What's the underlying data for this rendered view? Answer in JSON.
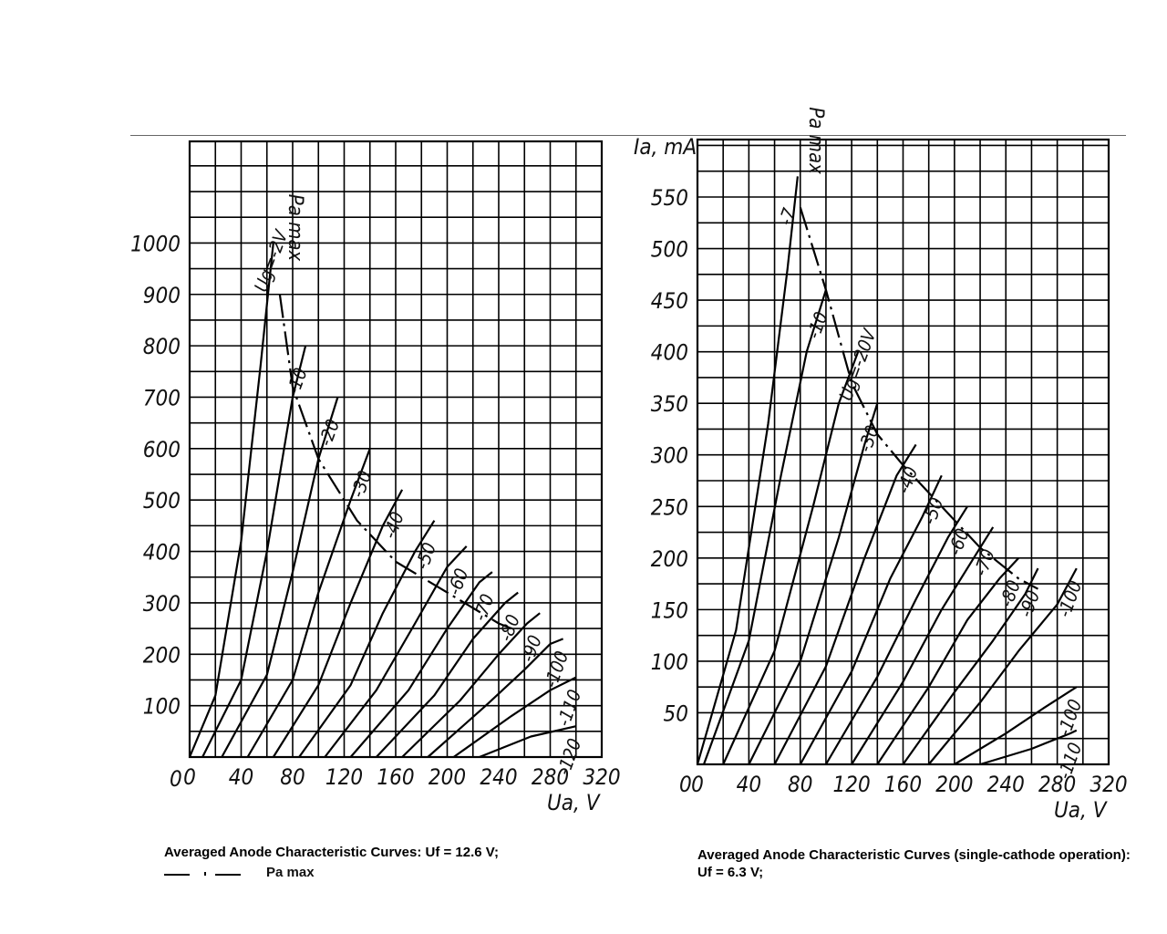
{
  "chart_data": [
    {
      "type": "line",
      "title": "",
      "ylabel": "",
      "xlabel": "Ua, V",
      "pmax_label": "Pa max",
      "x_ticks": [
        "0",
        "40",
        "80",
        "120",
        "160",
        "200",
        "240",
        "280",
        "320"
      ],
      "y_ticks": [
        "100",
        "200",
        "300",
        "400",
        "500",
        "600",
        "700",
        "800",
        "900",
        "1000"
      ],
      "xlim": [
        0,
        320
      ],
      "ylim": [
        0,
        1100
      ],
      "grid": true,
      "series": [
        {
          "name": "Ug=-2V",
          "x": [
            0,
            20,
            40,
            55,
            65
          ],
          "y": [
            0,
            120,
            420,
            760,
            1000
          ]
        },
        {
          "name": "-10",
          "x": [
            10,
            40,
            60,
            80,
            90
          ],
          "y": [
            0,
            150,
            400,
            700,
            800
          ]
        },
        {
          "name": "-20",
          "x": [
            25,
            60,
            80,
            100,
            115
          ],
          "y": [
            0,
            160,
            360,
            580,
            700
          ]
        },
        {
          "name": "-30",
          "x": [
            45,
            80,
            100,
            125,
            140
          ],
          "y": [
            0,
            150,
            320,
            500,
            600
          ]
        },
        {
          "name": "-40",
          "x": [
            65,
            100,
            125,
            150,
            165
          ],
          "y": [
            0,
            140,
            300,
            450,
            520
          ]
        },
        {
          "name": "-50",
          "x": [
            85,
            125,
            150,
            175,
            190
          ],
          "y": [
            0,
            140,
            280,
            400,
            460
          ]
        },
        {
          "name": "-60",
          "x": [
            105,
            145,
            175,
            200,
            215
          ],
          "y": [
            0,
            130,
            260,
            370,
            410
          ]
        },
        {
          "name": "-70",
          "x": [
            125,
            170,
            200,
            225,
            235
          ],
          "y": [
            0,
            130,
            250,
            340,
            360
          ]
        },
        {
          "name": "-80",
          "x": [
            145,
            190,
            220,
            245,
            255
          ],
          "y": [
            0,
            120,
            230,
            300,
            320
          ]
        },
        {
          "name": "-90",
          "x": [
            165,
            210,
            240,
            262,
            272
          ],
          "y": [
            0,
            110,
            200,
            260,
            280
          ]
        },
        {
          "name": "-100",
          "x": [
            185,
            230,
            260,
            280,
            290
          ],
          "y": [
            0,
            100,
            170,
            220,
            230
          ]
        },
        {
          "name": "-110",
          "x": [
            205,
            250,
            280,
            300
          ],
          "y": [
            0,
            80,
            130,
            155
          ]
        },
        {
          "name": "-120",
          "x": [
            225,
            265,
            300
          ],
          "y": [
            0,
            40,
            60
          ]
        }
      ],
      "pmax": {
        "x": [
          70,
          80,
          100,
          130,
          160,
          200,
          240,
          250
        ],
        "y": [
          900,
          720,
          580,
          460,
          380,
          320,
          260,
          250
        ]
      }
    },
    {
      "type": "line",
      "title": "",
      "ylabel": "Ia, mA",
      "xlabel": "Ua, V",
      "pmax_label": "Pa max",
      "x_ticks": [
        "0",
        "40",
        "80",
        "120",
        "160",
        "200",
        "240",
        "280",
        "320"
      ],
      "y_ticks": [
        "50",
        "100",
        "150",
        "200",
        "250",
        "300",
        "350",
        "400",
        "450",
        "500",
        "550"
      ],
      "xlim": [
        0,
        320
      ],
      "ylim": [
        0,
        600
      ],
      "grid": true,
      "series": [
        {
          "name": "-7",
          "x": [
            0,
            30,
            55,
            70,
            78
          ],
          "y": [
            0,
            130,
            330,
            480,
            570
          ]
        },
        {
          "name": "-10",
          "x": [
            5,
            40,
            65,
            85,
            100
          ],
          "y": [
            0,
            120,
            280,
            400,
            460
          ]
        },
        {
          "name": "Ug=-20V",
          "x": [
            20,
            60,
            90,
            110,
            125
          ],
          "y": [
            0,
            110,
            250,
            350,
            400
          ]
        },
        {
          "name": "-30",
          "x": [
            40,
            80,
            110,
            130,
            140
          ],
          "y": [
            0,
            100,
            220,
            310,
            350
          ]
        },
        {
          "name": "-40",
          "x": [
            60,
            100,
            130,
            155,
            170
          ],
          "y": [
            0,
            95,
            200,
            280,
            310
          ]
        },
        {
          "name": "-50",
          "x": [
            80,
            120,
            150,
            175,
            190
          ],
          "y": [
            0,
            90,
            180,
            240,
            280
          ]
        },
        {
          "name": "-60",
          "x": [
            100,
            140,
            170,
            195,
            210
          ],
          "y": [
            0,
            85,
            160,
            220,
            250
          ]
        },
        {
          "name": "-70",
          "x": [
            120,
            160,
            190,
            215,
            230
          ],
          "y": [
            0,
            80,
            150,
            200,
            230
          ]
        },
        {
          "name": "-80",
          "x": [
            140,
            180,
            210,
            235,
            250
          ],
          "y": [
            0,
            75,
            140,
            180,
            200
          ]
        },
        {
          "name": "-90",
          "x": [
            160,
            200,
            230,
            255,
            265
          ],
          "y": [
            0,
            70,
            120,
            165,
            190
          ]
        },
        {
          "name": "-100",
          "x": [
            180,
            220,
            250,
            280,
            295
          ],
          "y": [
            0,
            60,
            110,
            155,
            190
          ]
        },
        {
          "name": "-100",
          "x": [
            200,
            240,
            270,
            295
          ],
          "y": [
            0,
            30,
            55,
            75
          ]
        },
        {
          "name": "-110",
          "x": [
            220,
            260,
            290,
            295
          ],
          "y": [
            0,
            15,
            30,
            33
          ]
        }
      ],
      "pmax": {
        "x": [
          80,
          100,
          120,
          140,
          160,
          190,
          220,
          250,
          265
        ],
        "y": [
          540,
          460,
          370,
          320,
          290,
          250,
          210,
          180,
          170
        ]
      }
    }
  ],
  "captions": {
    "left": "Averaged Anode Characteristic Curves: Uf = 12.6 V;",
    "right": "Averaged Anode Characteristic Curves (single-cathode operation): Uf = 6.3 V;",
    "legend_label": "Pa max"
  }
}
